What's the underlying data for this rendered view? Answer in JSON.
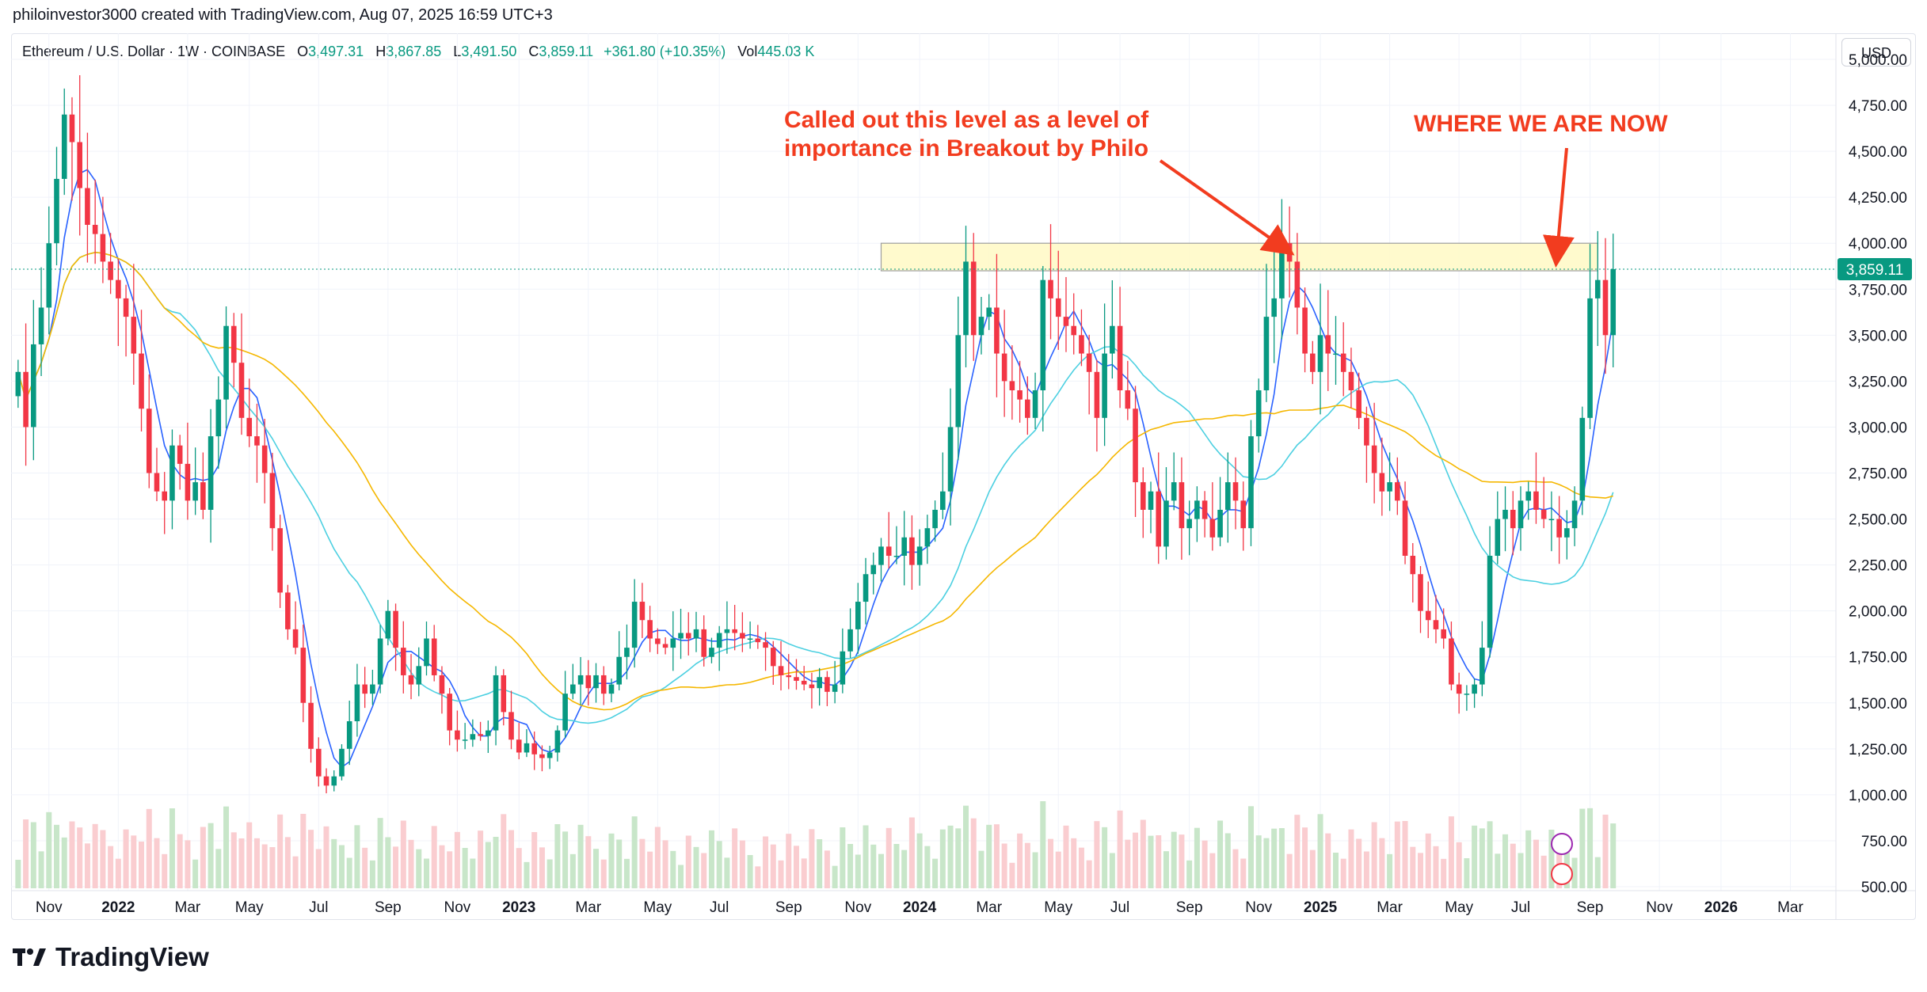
{
  "header": {
    "credit": "philoinvestor3000 created with TradingView.com, Aug 07, 2025 16:59 UTC+3"
  },
  "legend": {
    "symbol": "Ethereum / U.S. Dollar · 1W · COINBASE",
    "open_label": "O",
    "open": "3,497.31",
    "high_label": "H",
    "high": "3,867.85",
    "low_label": "L",
    "low": "3,491.50",
    "close_label": "C",
    "close": "3,859.11",
    "change": "+361.80 (+10.35%)",
    "vol_label": "Vol",
    "vol": "445.03 K"
  },
  "toolbar": {
    "currency": "USD"
  },
  "annotations": {
    "level_note": "Called out this level as a level of importance in Breakout by Philo",
    "now_note": "WHERE WE ARE NOW"
  },
  "brand": {
    "name": "TradingView"
  },
  "colors": {
    "up": "#089981",
    "down": "#f23645",
    "vol_up": "#c8e6c9",
    "vol_down": "#facdd0",
    "ma_fast": "#2962ff",
    "ma_mid": "#4dd0e1",
    "ma_slow": "#f5b700",
    "zone_fill": "#fff9c4",
    "zone_stroke": "#9e9e9e",
    "annotation": "#f23c1f"
  },
  "chart_data": {
    "type": "candlestick",
    "title": "Ethereum / U.S. Dollar · 1W · COINBASE",
    "price_axis": {
      "ticks": [
        "5,000.00",
        "4,750.00",
        "4,500.00",
        "4,250.00",
        "4,000.00",
        "3,750.00",
        "3,500.00",
        "3,250.00",
        "3,000.00",
        "2,750.00",
        "2,500.00",
        "2,250.00",
        "2,000.00",
        "1,750.00",
        "1,500.00",
        "1,250.00",
        "1,000.00",
        "750.00",
        "500.00"
      ],
      "tick_values": [
        5000,
        4750,
        4500,
        4250,
        4000,
        3750,
        3500,
        3250,
        3000,
        2750,
        2500,
        2250,
        2000,
        1750,
        1500,
        1250,
        1000,
        750,
        500
      ],
      "range": [
        500,
        5000
      ]
    },
    "time_axis": {
      "labels": [
        "Nov",
        "2022",
        "Mar",
        "May",
        "Jul",
        "Sep",
        "Nov",
        "2023",
        "Mar",
        "May",
        "Jul",
        "Sep",
        "Nov",
        "2024",
        "Mar",
        "May",
        "Jul",
        "Sep",
        "Nov",
        "2025",
        "Mar",
        "May",
        "Jul",
        "Sep",
        "Nov",
        "2026",
        "Mar"
      ],
      "bold": [
        "2022",
        "2023",
        "2024",
        "2025",
        "2026"
      ],
      "label_week_index": [
        4,
        13,
        22,
        30,
        39,
        48,
        57,
        65,
        74,
        83,
        91,
        100,
        109,
        117,
        126,
        135,
        143,
        152,
        161,
        169,
        178,
        187,
        195,
        204,
        213,
        221,
        230
      ],
      "total_weeks": 236
    },
    "last_price_label": "3,859.11",
    "resistance_zone": {
      "low": 3850,
      "high": 4000,
      "start_week": 112,
      "end_week": 205
    },
    "weekly_close": [
      3300,
      3000,
      3450,
      3650,
      4000,
      4350,
      4700,
      4550,
      4300,
      4100,
      4050,
      3900,
      3800,
      3700,
      3600,
      3400,
      3100,
      2750,
      2650,
      2600,
      2900,
      2800,
      2600,
      2700,
      2550,
      2950,
      3150,
      3550,
      3350,
      3050,
      2950,
      2900,
      2750,
      2450,
      2100,
      1900,
      1800,
      1500,
      1250,
      1100,
      1050,
      1100,
      1250,
      1400,
      1600,
      1550,
      1600,
      1850,
      2000,
      1800,
      1650,
      1600,
      1700,
      1850,
      1650,
      1550,
      1350,
      1300,
      1300,
      1330,
      1320,
      1350,
      1650,
      1450,
      1300,
      1230,
      1280,
      1220,
      1200,
      1230,
      1350,
      1550,
      1600,
      1650,
      1580,
      1650,
      1550,
      1600,
      1750,
      1800,
      2050,
      1950,
      1850,
      1820,
      1800,
      1850,
      1880,
      1850,
      1900,
      1750,
      1800,
      1880,
      1900,
      1880,
      1850,
      1850,
      1830,
      1800,
      1700,
      1650,
      1640,
      1620,
      1600,
      1580,
      1640,
      1560,
      1600,
      1780,
      1900,
      2050,
      2200,
      2250,
      2350,
      2300,
      2300,
      2400,
      2250,
      2350,
      2450,
      2550,
      2650,
      3000,
      3500,
      3900,
      3500,
      3600,
      3650,
      3400,
      3250,
      3200,
      3150,
      3050,
      3200,
      3800,
      3700,
      3600,
      3550,
      3500,
      3400,
      3300,
      3050,
      3400,
      3550,
      3200,
      3100,
      2700,
      2550,
      2650,
      2350,
      2600,
      2700,
      2450,
      2500,
      2600,
      2500,
      2400,
      2550,
      2700,
      2600,
      2450,
      2950,
      3200,
      3600,
      3700,
      4000,
      3900,
      3650,
      3400,
      3300,
      3500,
      3400,
      3400,
      3300,
      3200,
      3050,
      2900,
      2750,
      2650,
      2700,
      2600,
      2300,
      2200,
      2000,
      1950,
      1900,
      1850,
      1600,
      1550,
      1550,
      1600,
      1800,
      2300,
      2500,
      2550,
      2450,
      2600,
      2650,
      2550,
      2500,
      2500,
      2400,
      2450,
      2600,
      3050,
      3700,
      3800,
      3500,
      3859
    ],
    "series": [
      {
        "name": "MA fast",
        "color": "#2962ff"
      },
      {
        "name": "MA mid",
        "color": "#4dd0e1"
      },
      {
        "name": "MA slow",
        "color": "#f5b700"
      }
    ],
    "volume_note": "volume bars shown at bottom, green for up weeks, red for down weeks"
  }
}
